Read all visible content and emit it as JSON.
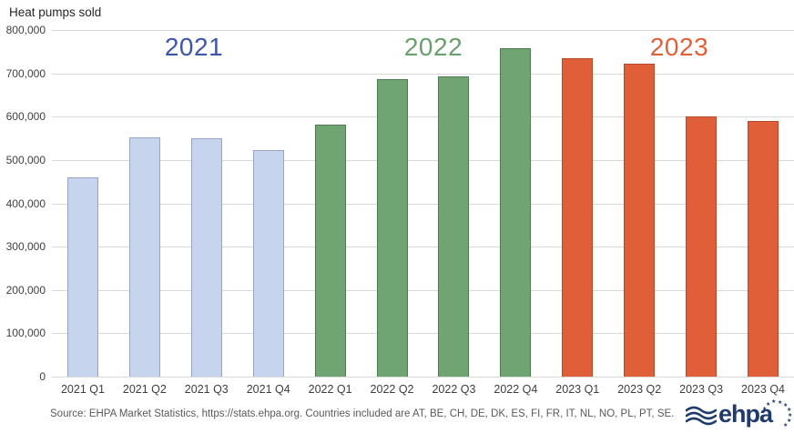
{
  "chart_data": {
    "type": "bar",
    "title": "Heat pumps sold",
    "categories": [
      "2021 Q1",
      "2021 Q2",
      "2021 Q3",
      "2021 Q4",
      "2022 Q1",
      "2022 Q2",
      "2022 Q3",
      "2022 Q4",
      "2023 Q1",
      "2023 Q2",
      "2023 Q3",
      "2023 Q4"
    ],
    "values": [
      460000,
      553000,
      551000,
      523000,
      582000,
      686000,
      693000,
      759000,
      735000,
      723000,
      601000,
      589000
    ],
    "year_groups": [
      {
        "year": "2021",
        "bar_fill": "#c7d4ed",
        "bar_border": "#94a5c7",
        "label_color": "#3c56a8"
      },
      {
        "year": "2022",
        "bar_fill": "#70a472",
        "bar_border": "#4e7a50",
        "label_color": "#69a06b"
      },
      {
        "year": "2023",
        "bar_fill": "#e05f39",
        "bar_border": "#b24a2b",
        "label_color": "#e0603a"
      }
    ],
    "xlabel": "",
    "ylabel": "Heat pumps sold",
    "ylim": [
      0,
      800000
    ],
    "ytick_step": 100000,
    "ytick_format": "thousands-comma",
    "grid": true,
    "legend_position": "year labels above bar groups"
  },
  "footer": {
    "source": "Source: EHPA Market Statistics, https://stats.ehpa.org. Countries included are AT, BE, CH, DE, DK, ES, FI, FR, IT, NL, NO, PL, PT, SE.",
    "logo_text": "ehpa"
  }
}
